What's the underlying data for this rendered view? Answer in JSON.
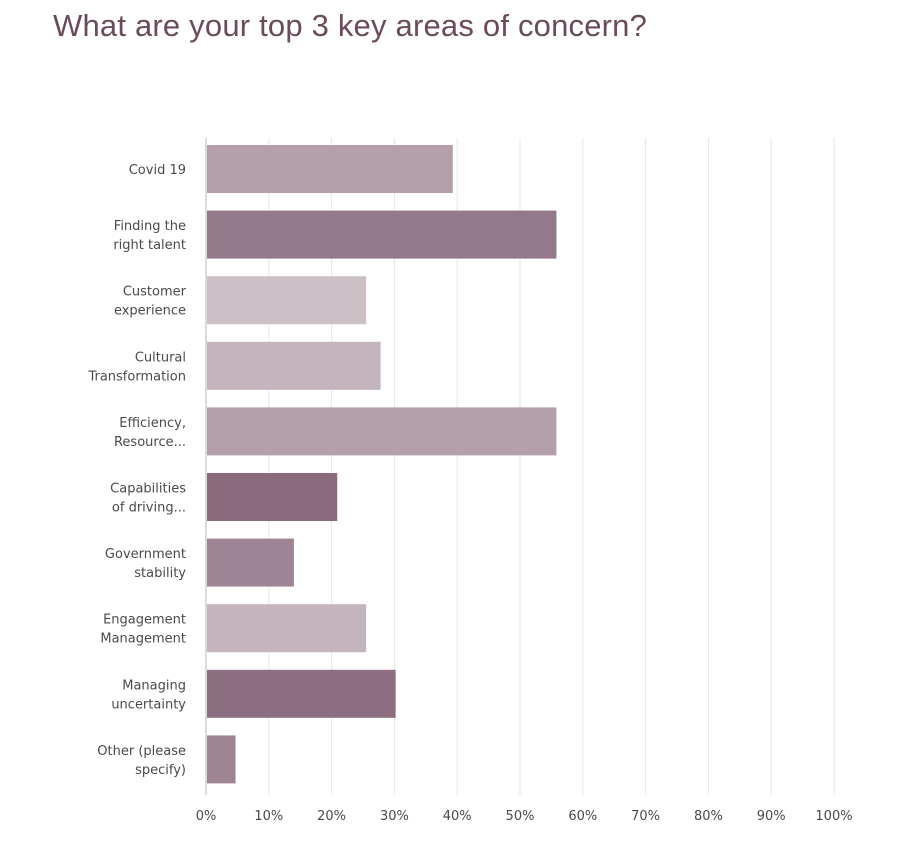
{
  "chart_data": {
    "type": "bar",
    "orientation": "horizontal",
    "title": "What are your top 3 key areas of concern?",
    "categories": [
      [
        "Covid 19"
      ],
      [
        "Finding the",
        "right talent"
      ],
      [
        "Customer",
        "experience"
      ],
      [
        "Cultural",
        "Transformation"
      ],
      [
        "Efficiency,",
        "Resource..."
      ],
      [
        "Capabilities",
        "of driving..."
      ],
      [
        "Government",
        "stability"
      ],
      [
        "Engagement",
        "Management"
      ],
      [
        "Managing",
        "uncertainty"
      ],
      [
        "Other (please",
        "specify)"
      ]
    ],
    "values": [
      39.3,
      55.8,
      25.5,
      27.8,
      55.8,
      20.9,
      14.0,
      25.5,
      30.2,
      4.7
    ],
    "bar_colors": [
      "#b49fab",
      "#94798a",
      "#cdbfc6",
      "#c4b4bd",
      "#b49fab",
      "#8a6a7c",
      "#9f8593",
      "#c4b4bd",
      "#8d6e80",
      "#9f8593"
    ],
    "x_ticks": [
      "0%",
      "10%",
      "20%",
      "30%",
      "40%",
      "50%",
      "60%",
      "70%",
      "80%",
      "90%",
      "100%"
    ],
    "xlim": [
      0,
      100
    ],
    "grid": true
  }
}
